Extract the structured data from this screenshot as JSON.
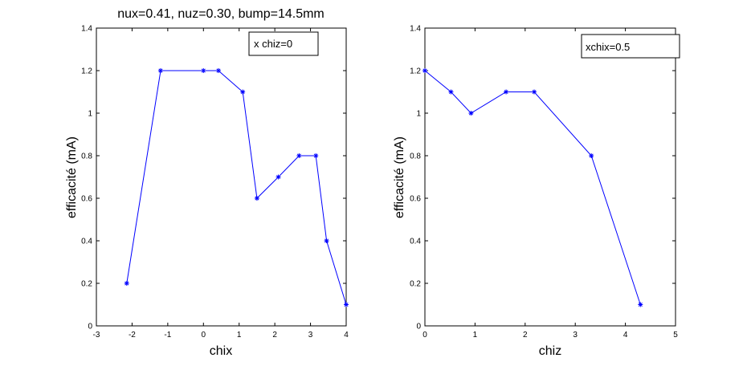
{
  "chart_data": [
    {
      "type": "line",
      "title": "nux=0.41, nuz=0.30, bump=14.5mm",
      "xlabel": "chix",
      "ylabel": "efficacité (mA)",
      "xlim": [
        -3,
        4
      ],
      "ylim": [
        0,
        1.4
      ],
      "xticks": [
        "-3",
        "-2",
        "-1",
        "0",
        "1",
        "2",
        "3",
        "4"
      ],
      "yticks": [
        "0",
        "0.2",
        "0.4",
        "0.6",
        "0.8",
        "1",
        "1.2",
        "1.4"
      ],
      "legend": "x chiz=0",
      "legend_position": "top-right",
      "color": "#0000ff",
      "marker": "*",
      "x": [
        -2.15,
        -1.2,
        0.0,
        0.42,
        1.1,
        1.5,
        2.1,
        2.68,
        3.15,
        3.45,
        4.0
      ],
      "y": [
        0.2,
        1.2,
        1.2,
        1.2,
        1.1,
        0.6,
        0.7,
        0.8,
        0.8,
        0.4,
        0.1
      ]
    },
    {
      "type": "line",
      "title": "",
      "xlabel": "chiz",
      "ylabel": "efficacité (mA)",
      "xlim": [
        0,
        5
      ],
      "ylim": [
        0,
        1.4
      ],
      "xticks": [
        "0",
        "1",
        "2",
        "3",
        "4",
        "5"
      ],
      "yticks": [
        "0",
        "0.2",
        "0.4",
        "0.6",
        "0.8",
        "1",
        "1.2",
        "1.4"
      ],
      "legend": "xchix=0.5",
      "legend_position": "top-right",
      "color": "#0000ff",
      "marker": "*",
      "x": [
        0.0,
        0.52,
        0.92,
        1.62,
        2.18,
        3.32,
        4.3
      ],
      "y": [
        1.2,
        1.1,
        1.0,
        1.1,
        1.1,
        0.8,
        0.1
      ]
    }
  ]
}
